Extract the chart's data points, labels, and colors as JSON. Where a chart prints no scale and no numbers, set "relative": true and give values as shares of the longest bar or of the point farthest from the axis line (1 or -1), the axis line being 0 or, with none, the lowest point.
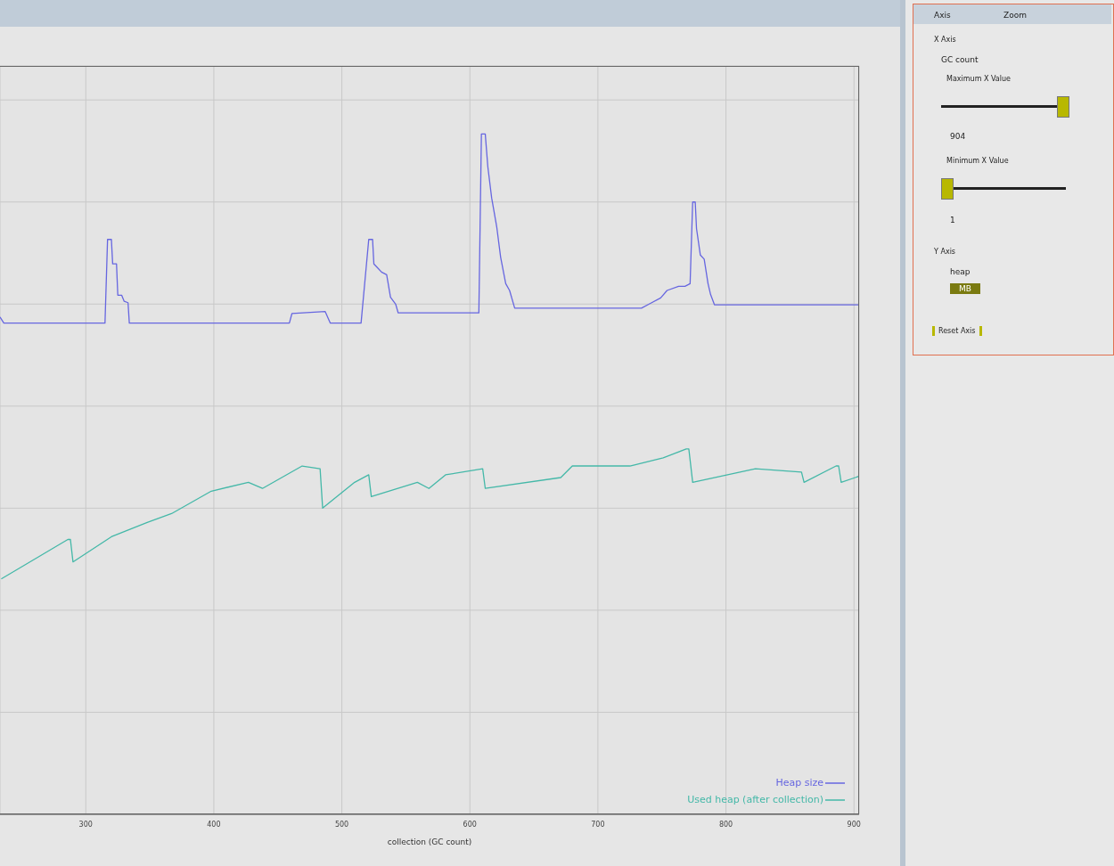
{
  "chart_data": [
    {
      "type": "line",
      "xlabel": "collection (GC count)",
      "relative": true,
      "xlim": [
        233,
        904
      ],
      "xticks": [
        300,
        400,
        500,
        600,
        700,
        800,
        900
      ],
      "grid": true,
      "legend": "bottom right",
      "marker": "none",
      "line_style": "solid",
      "series": [
        {
          "name": "Heap size",
          "color": "#6666e0",
          "x": [
            233,
            236,
            315,
            317,
            320,
            321,
            324,
            325,
            328,
            330,
            333,
            334,
            459,
            461,
            487,
            491,
            515,
            521,
            524,
            525,
            528,
            531,
            535,
            538,
            542,
            544,
            607,
            609,
            612,
            614,
            617,
            621,
            624,
            628,
            631,
            635,
            734,
            740,
            749,
            754,
            763,
            768,
            772,
            774,
            776,
            777,
            780,
            783,
            786,
            788,
            791,
            904
          ],
          "values": [
            0.731,
            0.722,
            0.722,
            0.845,
            0.845,
            0.809,
            0.809,
            0.763,
            0.763,
            0.754,
            0.752,
            0.722,
            0.722,
            0.736,
            0.739,
            0.722,
            0.722,
            0.845,
            0.845,
            0.809,
            0.803,
            0.797,
            0.793,
            0.76,
            0.75,
            0.737,
            0.737,
            1.0,
            1.0,
            0.952,
            0.906,
            0.863,
            0.819,
            0.78,
            0.77,
            0.744,
            0.744,
            0.75,
            0.759,
            0.77,
            0.776,
            0.776,
            0.78,
            0.9,
            0.9,
            0.861,
            0.822,
            0.816,
            0.78,
            0.764,
            0.749,
            0.749
          ]
        },
        {
          "name": "Used heap (after collection)",
          "color": "#44b8a8",
          "x": [
            234,
            286,
            288,
            290,
            320,
            348,
            367,
            398,
            427,
            438,
            469,
            483,
            485,
            510,
            521,
            523,
            559,
            568,
            581,
            610,
            612,
            671,
            680,
            725,
            751,
            769,
            771,
            774,
            823,
            859,
            861,
            886,
            888,
            890,
            901,
            904
          ],
          "values": [
            0.346,
            0.404,
            0.404,
            0.371,
            0.408,
            0.429,
            0.442,
            0.475,
            0.488,
            0.479,
            0.512,
            0.508,
            0.45,
            0.488,
            0.499,
            0.467,
            0.488,
            0.479,
            0.499,
            0.508,
            0.479,
            0.495,
            0.512,
            0.512,
            0.524,
            0.537,
            0.537,
            0.488,
            0.508,
            0.503,
            0.488,
            0.512,
            0.512,
            0.488,
            0.495,
            0.497
          ]
        }
      ]
    },
    {
      "type": "other",
      "annotations": [
        "Axis",
        "Zoom",
        "X Axis",
        "GC count",
        "Maximum X Value",
        "904",
        "Minimum X Value",
        "1",
        "Y Axis",
        "heap",
        "MB",
        "Reset Axis"
      ]
    }
  ]
}
